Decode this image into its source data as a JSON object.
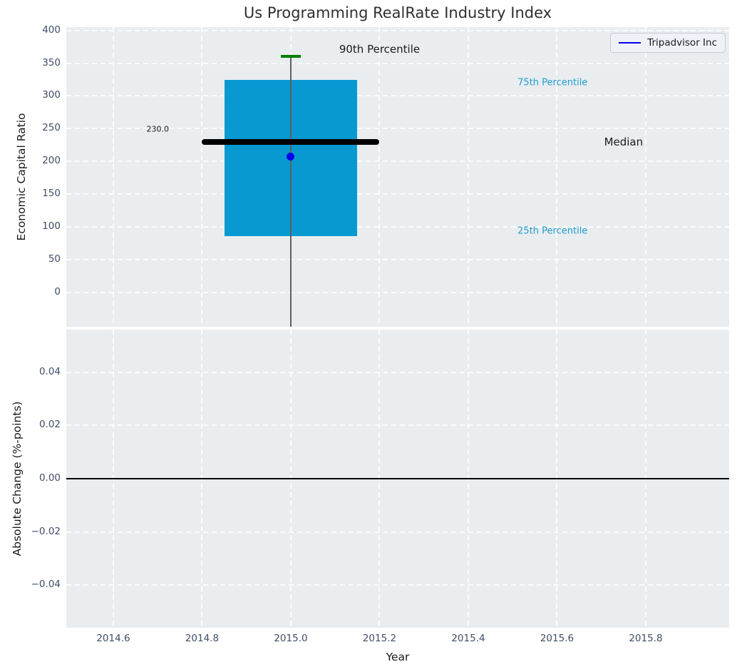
{
  "figure": {
    "title": "Us Programming RealRate Industry Index",
    "legend": {
      "label": "Tripadvisor Inc",
      "line_color": "#0000ee"
    }
  },
  "colors": {
    "plot_background": "#e9edf0",
    "gridline": "#ffffff",
    "tick_label": "#3f4d66",
    "box_fill": "#0899d1",
    "median_line": "#000000",
    "p90_cap": "#008000",
    "whisker": "#5f5f5f",
    "company_point": "#0000ee",
    "percentile_label": "#1f9ccc",
    "annotation_dark": "#1a1a1a",
    "zero_line": "#000000"
  },
  "chart_data": [
    {
      "type": "box",
      "title": "Us Programming RealRate Industry Index",
      "ylabel": "Economic Capital Ratio",
      "xlim": [
        2014.494,
        2015.988
      ],
      "ylim": [
        -52,
        405
      ],
      "grid": "white dashed, on",
      "legend_position": "upper right",
      "yticks": [
        {
          "value": 0,
          "label": "0"
        },
        {
          "value": 50,
          "label": "50"
        },
        {
          "value": 100,
          "label": "100"
        },
        {
          "value": 150,
          "label": "150"
        },
        {
          "value": 200,
          "label": "200"
        },
        {
          "value": 250,
          "label": "250"
        },
        {
          "value": 300,
          "label": "300"
        },
        {
          "value": 350,
          "label": "350"
        },
        {
          "value": 400,
          "label": "400"
        }
      ],
      "xticks": [
        {
          "value": 2014.6,
          "label": "2014.6"
        },
        {
          "value": 2014.8,
          "label": "2014.8"
        },
        {
          "value": 2015.0,
          "label": "2015.0"
        },
        {
          "value": 2015.2,
          "label": "2015.2"
        },
        {
          "value": 2015.4,
          "label": "2015.4"
        },
        {
          "value": 2015.6,
          "label": "2015.6"
        },
        {
          "value": 2015.8,
          "label": "2015.8"
        }
      ],
      "box": {
        "x_center": 2015.0,
        "x_left": 2014.85,
        "x_right": 2015.15,
        "p25": 86,
        "p75": 325,
        "median": 230,
        "p90": 360,
        "whisker_clipped_below_axis": true,
        "median_span": [
          2014.8,
          2015.2
        ]
      },
      "company_point": {
        "label": "Tripadvisor Inc",
        "x": 2015.0,
        "y": 207
      },
      "annotations": [
        {
          "name": "p90-percentile-label",
          "text": "90th Percentile",
          "x": 2015.2,
          "y": 371,
          "color": "#1a1a1a",
          "size": "large"
        },
        {
          "name": "p75-percentile-label",
          "text": "75th Percentile",
          "x": 2015.59,
          "y": 320,
          "color": "#1f9ccc",
          "size": "small"
        },
        {
          "name": "median-label",
          "text": "Median",
          "x": 2015.75,
          "y": 230,
          "color": "#1a1a1a",
          "size": "large"
        },
        {
          "name": "p25-percentile-label",
          "text": "25th Percentile",
          "x": 2015.59,
          "y": 94,
          "color": "#1f9ccc",
          "size": "small"
        },
        {
          "name": "median-value-label",
          "text": "230.0",
          "x": 2014.7,
          "y": 249,
          "color": "#1a1a1a",
          "size": "xsmall"
        }
      ]
    },
    {
      "type": "line",
      "ylabel": "Absolute Change (%-points)",
      "xlabel": "Year",
      "xlim": [
        2014.494,
        2015.988
      ],
      "ylim": [
        -0.056,
        0.056
      ],
      "grid": "white dashed, on",
      "zero_line": 0.0,
      "series": [],
      "yticks": [
        {
          "value": 0.04,
          "label": "0.04"
        },
        {
          "value": 0.02,
          "label": "0.02"
        },
        {
          "value": 0.0,
          "label": "0.00"
        },
        {
          "value": -0.02,
          "label": "−0.02"
        },
        {
          "value": -0.04,
          "label": "−0.04"
        }
      ],
      "xticks": [
        {
          "value": 2014.6,
          "label": "2014.6"
        },
        {
          "value": 2014.8,
          "label": "2014.8"
        },
        {
          "value": 2015.0,
          "label": "2015.0"
        },
        {
          "value": 2015.2,
          "label": "2015.2"
        },
        {
          "value": 2015.4,
          "label": "2015.4"
        },
        {
          "value": 2015.6,
          "label": "2015.6"
        },
        {
          "value": 2015.8,
          "label": "2015.8"
        }
      ]
    }
  ]
}
